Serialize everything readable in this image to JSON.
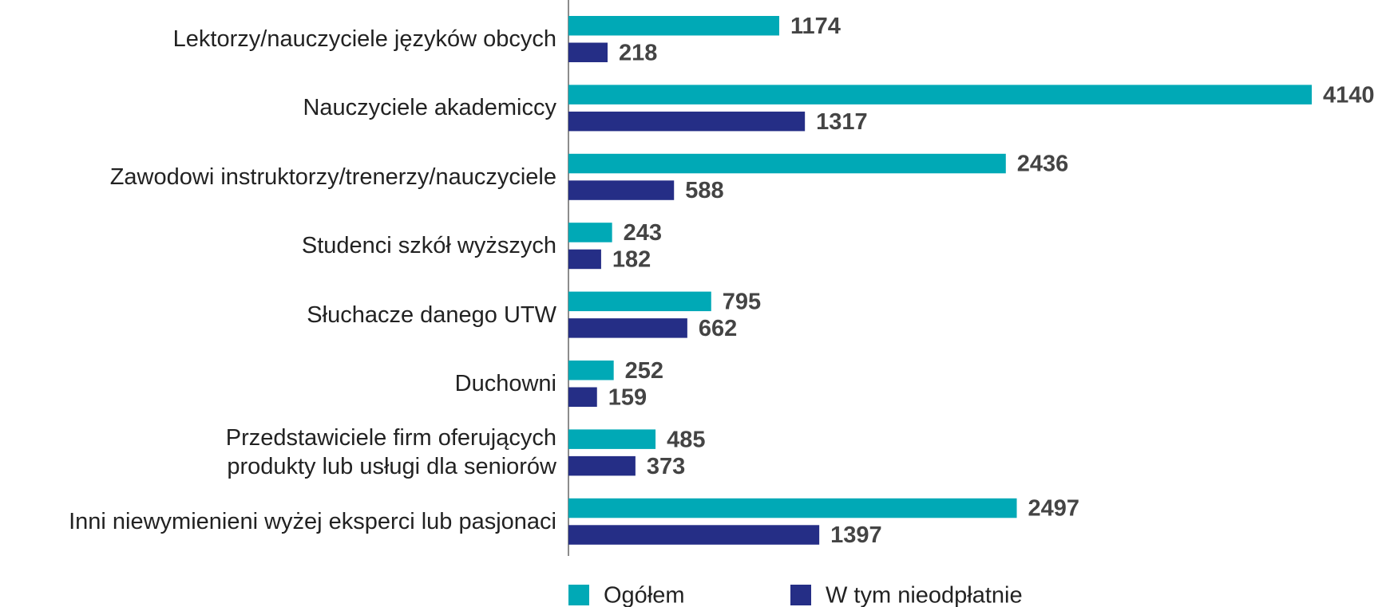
{
  "chart_data": {
    "type": "bar",
    "orientation": "horizontal",
    "categories": [
      "Lektorzy/nauczyciele języków obcych",
      "Nauczyciele akademiccy",
      "Zawodowi instruktorzy/trenerzy/nauczyciele",
      "Studenci szkół wyższych",
      "Słuchacze danego UTW",
      "Duchowni",
      "Przedstawiciele firm oferujących\nprodukty lub usługi dla seniorów",
      "Inni niewymienieni wyżej eksperci lub pasjonaci"
    ],
    "series": [
      {
        "name": "Ogółem",
        "color": "#00a9b6",
        "values": [
          1174,
          4140,
          2436,
          243,
          795,
          252,
          485,
          2497
        ]
      },
      {
        "name": "W tym nieodpłatnie",
        "color": "#252e86",
        "values": [
          218,
          1317,
          588,
          182,
          662,
          159,
          373,
          1397
        ]
      }
    ],
    "legend": "bottom"
  }
}
